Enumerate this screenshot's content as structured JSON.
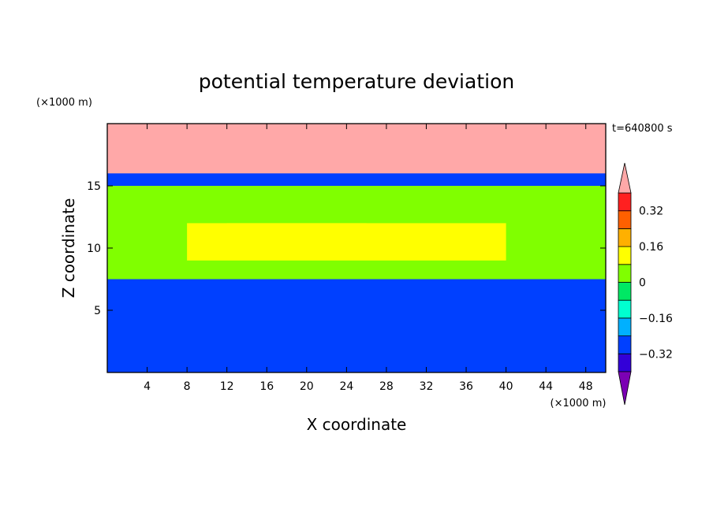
{
  "chart_data": {
    "type": "heatmap",
    "title": "potential temperature deviation",
    "xlabel": "X coordinate",
    "ylabel": "Z coordinate",
    "x_unit_label": "(×1000 m)",
    "z_unit_label": "(×1000 m)",
    "time_label": "t=640800 s",
    "xlim": [
      0,
      50
    ],
    "ylim": [
      0,
      20
    ],
    "x_ticks": [
      4,
      8,
      12,
      16,
      20,
      24,
      28,
      32,
      36,
      40,
      44,
      48
    ],
    "y_ticks": [
      5,
      10,
      15
    ],
    "colorbar": {
      "levels": [
        -0.4,
        -0.32,
        -0.24,
        -0.16,
        -0.08,
        0,
        0.08,
        0.16,
        0.24,
        0.32,
        0.4
      ],
      "tick_labels": [
        "−0.32",
        "−0.16",
        "0",
        "0.16",
        "0.32"
      ],
      "tick_values": [
        -0.32,
        -0.16,
        0,
        0.16,
        0.32
      ],
      "colors": [
        "#7b00b4",
        "#3300d8",
        "#0040ff",
        "#00b0ff",
        "#00ffd0",
        "#00e864",
        "#80ff00",
        "#ffff00",
        "#ffb000",
        "#ff6000",
        "#ff2020",
        "#ffa8a8"
      ],
      "extend": "both"
    },
    "regions": [
      {
        "x": [
          0,
          50
        ],
        "z": [
          0,
          20
        ],
        "value": -0.25
      },
      {
        "x": [
          0,
          50
        ],
        "z": [
          7.5,
          15
        ],
        "value": 0.05
      },
      {
        "x": [
          8,
          40
        ],
        "z": [
          9,
          12
        ],
        "value": 0.11
      },
      {
        "x": [
          12,
          26
        ],
        "z": [
          10,
          12
        ],
        "value": 0.15
      },
      {
        "x": [
          0,
          50
        ],
        "z": [
          16,
          20
        ],
        "value": 0.45
      }
    ]
  }
}
